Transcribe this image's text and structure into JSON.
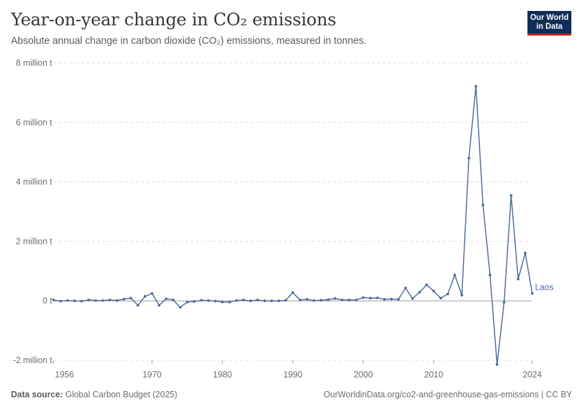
{
  "header": {
    "title": "Year-on-year change in CO₂ emissions",
    "subtitle": "Absolute annual change in carbon dioxide (CO₂) emissions, measured in tonnes."
  },
  "logo": {
    "line1": "Our World",
    "line2": "in Data"
  },
  "footer": {
    "source_label": "Data source:",
    "source_value": "Global Carbon Budget (2025)",
    "link": "OurWorldinData.org/co2-and-greenhouse-gas-emissions | CC BY"
  },
  "colors": {
    "line": "#4c6a9c",
    "grid": "#dddddd",
    "zero": "#9a9a9a",
    "logo_bg": "#0f2d57",
    "logo_accent": "#ce261e"
  },
  "chart_data": {
    "type": "line",
    "ylim": [
      -2000000,
      8000000
    ],
    "xlim": [
      1956,
      2024
    ],
    "y_ticks": [
      {
        "value": 8000000,
        "label": "8 million t"
      },
      {
        "value": 6000000,
        "label": "6 million t"
      },
      {
        "value": 4000000,
        "label": "4 million t"
      },
      {
        "value": 2000000,
        "label": "2 million t"
      },
      {
        "value": 0,
        "label": "0 t"
      },
      {
        "value": -2000000,
        "label": "-2 million t"
      }
    ],
    "x_ticks": [
      {
        "value": 1956,
        "label": "1956"
      },
      {
        "value": 1970,
        "label": "1970"
      },
      {
        "value": 1980,
        "label": "1980"
      },
      {
        "value": 1990,
        "label": "1990"
      },
      {
        "value": 2000,
        "label": "2000"
      },
      {
        "value": 2010,
        "label": "2010"
      },
      {
        "value": 2024,
        "label": "2024"
      }
    ],
    "grid": true,
    "series": [
      {
        "name": "Laos",
        "x": [
          1956,
          1957,
          1958,
          1959,
          1960,
          1961,
          1962,
          1963,
          1964,
          1965,
          1966,
          1967,
          1968,
          1969,
          1970,
          1971,
          1972,
          1973,
          1974,
          1975,
          1976,
          1977,
          1978,
          1979,
          1980,
          1981,
          1982,
          1983,
          1984,
          1985,
          1986,
          1987,
          1988,
          1989,
          1990,
          1991,
          1992,
          1993,
          1994,
          1995,
          1996,
          1997,
          1998,
          1999,
          2000,
          2001,
          2002,
          2003,
          2004,
          2005,
          2006,
          2007,
          2008,
          2009,
          2010,
          2011,
          2012,
          2013,
          2014,
          2015,
          2016,
          2017,
          2018,
          2019,
          2020,
          2021,
          2022,
          2023,
          2024
        ],
        "values": [
          30000,
          -10000,
          10000,
          0,
          -10000,
          30000,
          10000,
          10000,
          30000,
          10000,
          60000,
          90000,
          -150000,
          150000,
          250000,
          -150000,
          70000,
          30000,
          -220000,
          -40000,
          -20000,
          20000,
          10000,
          -10000,
          -40000,
          -40000,
          10000,
          30000,
          0,
          30000,
          0,
          0,
          0,
          20000,
          280000,
          30000,
          50000,
          10000,
          20000,
          40000,
          80000,
          30000,
          30000,
          30000,
          110000,
          90000,
          100000,
          50000,
          60000,
          50000,
          430000,
          80000,
          290000,
          540000,
          330000,
          90000,
          230000,
          870000,
          190000,
          4800000,
          7220000,
          3230000,
          870000,
          -2140000,
          -50000,
          3540000,
          730000,
          1610000,
          250000
        ]
      }
    ]
  }
}
